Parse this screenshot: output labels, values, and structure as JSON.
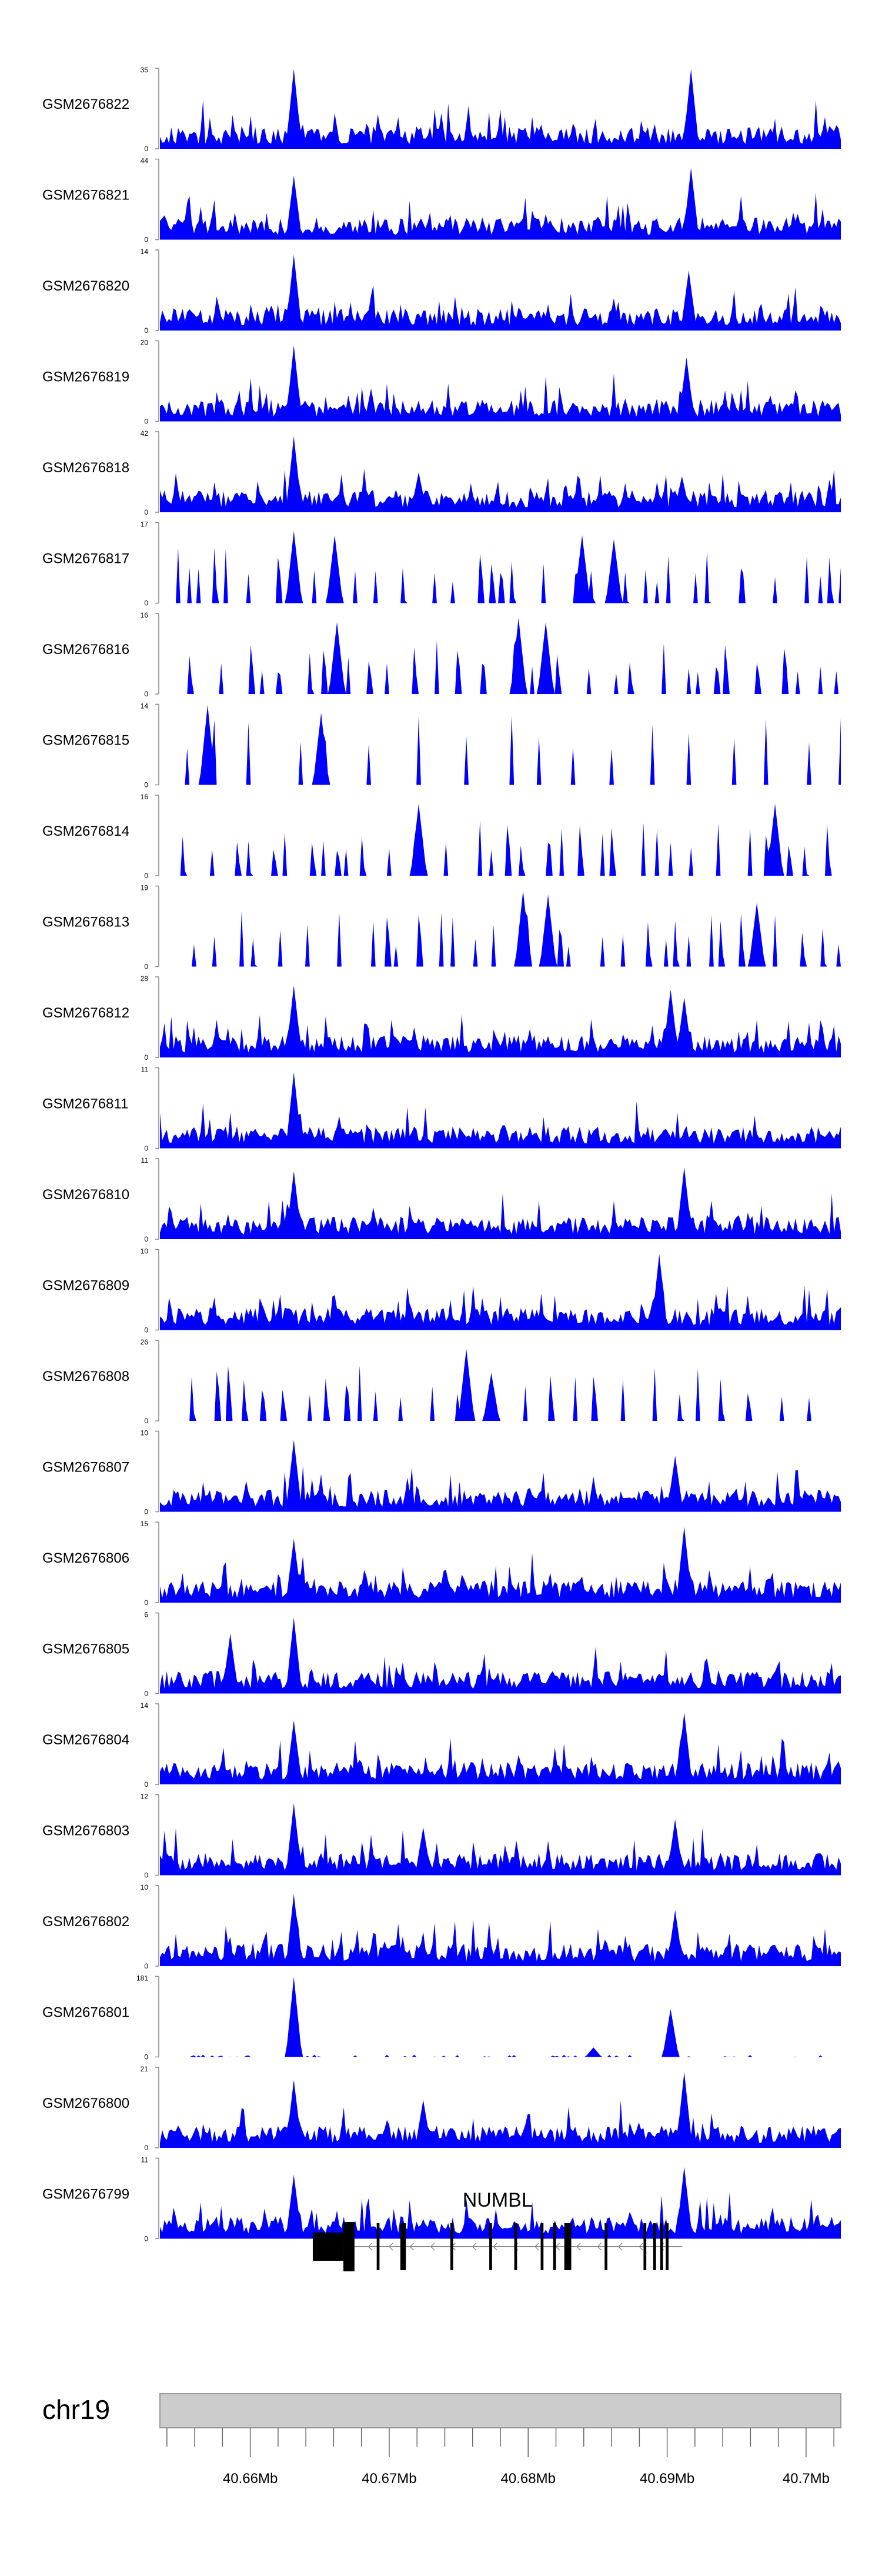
{
  "chart_data": {
    "type": "area",
    "title": "",
    "xlabel": "",
    "chromosome": "chr19",
    "xlim_mb": [
      40.6535,
      40.7025
    ],
    "x_ticks": [
      {
        "value": 40.66,
        "label": "40.66Mb"
      },
      {
        "value": 40.67,
        "label": "40.67Mb"
      },
      {
        "value": 40.68,
        "label": "40.68Mb"
      },
      {
        "value": 40.69,
        "label": "40.69Mb"
      },
      {
        "value": 40.7,
        "label": "40.7Mb"
      }
    ],
    "color": "#0000ff",
    "tracks": [
      {
        "name": "GSM2676822",
        "ymin": "0",
        "ymax": "35",
        "style": "dense",
        "peaks": [
          [
            40.6632,
            1.0
          ],
          [
            40.6918,
            1.0
          ]
        ]
      },
      {
        "name": "GSM2676821",
        "ymin": "0",
        "ymax": "44",
        "style": "dense",
        "peaks": [
          [
            40.6632,
            0.8
          ],
          [
            40.6918,
            0.9
          ]
        ]
      },
      {
        "name": "GSM2676820",
        "ymin": "0",
        "ymax": "14",
        "style": "dense",
        "peaks": [
          [
            40.6632,
            0.95
          ],
          [
            40.6916,
            0.75
          ]
        ]
      },
      {
        "name": "GSM2676819",
        "ymin": "0",
        "ymax": "20",
        "style": "dense",
        "peaks": [
          [
            40.6632,
            0.95
          ],
          [
            40.6914,
            0.8
          ]
        ]
      },
      {
        "name": "GSM2676818",
        "ymin": "0",
        "ymax": "42",
        "style": "dense",
        "peaks": [
          [
            40.6632,
            0.95
          ],
          [
            40.6721,
            0.5
          ],
          [
            40.691,
            0.45
          ]
        ]
      },
      {
        "name": "GSM2676817",
        "ymin": "0",
        "ymax": "17",
        "style": "sparse",
        "peaks": [
          [
            40.6632,
            0.9
          ],
          [
            40.666,
            0.85
          ],
          [
            40.6838,
            0.85
          ],
          [
            40.6862,
            0.8
          ]
        ]
      },
      {
        "name": "GSM2676816",
        "ymin": "0",
        "ymax": "16",
        "style": "sparse",
        "peaks": [
          [
            40.6662,
            0.9
          ],
          [
            40.6793,
            0.95
          ],
          [
            40.6813,
            0.9
          ]
        ]
      },
      {
        "name": "GSM2676815",
        "ymin": "0",
        "ymax": "14",
        "style": "triangles",
        "peaks": [
          [
            40.657,
            1.0
          ],
          [
            40.6651,
            0.9
          ]
        ]
      },
      {
        "name": "GSM2676814",
        "ymin": "0",
        "ymax": "16",
        "style": "sparse",
        "peaks": [
          [
            40.6722,
            0.9
          ],
          [
            40.6977,
            0.9
          ]
        ]
      },
      {
        "name": "GSM2676813",
        "ymin": "0",
        "ymax": "19",
        "style": "sparse",
        "peaks": [
          [
            40.6797,
            0.95
          ],
          [
            40.6815,
            0.9
          ],
          [
            40.6965,
            0.8
          ]
        ]
      },
      {
        "name": "GSM2676812",
        "ymin": "0",
        "ymax": "28",
        "style": "dense",
        "peaks": [
          [
            40.6632,
            0.9
          ],
          [
            40.6903,
            0.85
          ],
          [
            40.6913,
            0.75
          ]
        ]
      },
      {
        "name": "GSM2676811",
        "ymin": "0",
        "ymax": "11",
        "style": "dense",
        "peaks": [
          [
            40.6632,
            0.95
          ]
        ]
      },
      {
        "name": "GSM2676810",
        "ymin": "0",
        "ymax": "11",
        "style": "dense",
        "peaks": [
          [
            40.6632,
            0.85
          ],
          [
            40.6912,
            0.9
          ]
        ]
      },
      {
        "name": "GSM2676809",
        "ymin": "0",
        "ymax": "10",
        "style": "dense",
        "peaks": [
          [
            40.6895,
            0.95
          ]
        ]
      },
      {
        "name": "GSM2676808",
        "ymin": "0",
        "ymax": "26",
        "style": "sparse",
        "peaks": [
          [
            40.6755,
            0.9
          ],
          [
            40.6773,
            0.6
          ]
        ]
      },
      {
        "name": "GSM2676807",
        "ymin": "0",
        "ymax": "10",
        "style": "dense",
        "peaks": [
          [
            40.6632,
            0.9
          ],
          [
            40.6905,
            0.7
          ]
        ]
      },
      {
        "name": "GSM2676806",
        "ymin": "0",
        "ymax": "15",
        "style": "dense",
        "peaks": [
          [
            40.6632,
            0.8
          ],
          [
            40.6912,
            0.95
          ]
        ]
      },
      {
        "name": "GSM2676805",
        "ymin": "0",
        "ymax": "6",
        "style": "dense",
        "peaks": [
          [
            40.6632,
            0.95
          ],
          [
            40.6585,
            0.75
          ]
        ]
      },
      {
        "name": "GSM2676804",
        "ymin": "0",
        "ymax": "14",
        "style": "dense",
        "peaks": [
          [
            40.6632,
            0.8
          ],
          [
            40.6912,
            0.9
          ]
        ]
      },
      {
        "name": "GSM2676803",
        "ymin": "0",
        "ymax": "12",
        "style": "dense",
        "peaks": [
          [
            40.6632,
            0.9
          ],
          [
            40.6725,
            0.6
          ],
          [
            40.6905,
            0.7
          ]
        ]
      },
      {
        "name": "GSM2676802",
        "ymin": "0",
        "ymax": "10",
        "style": "dense",
        "peaks": [
          [
            40.6632,
            0.9
          ],
          [
            40.6905,
            0.7
          ]
        ]
      },
      {
        "name": "GSM2676801",
        "ymin": "0",
        "ymax": "181",
        "style": "single",
        "peaks": [
          [
            40.6632,
            1.0
          ],
          [
            40.6902,
            0.6
          ],
          [
            40.6847,
            0.12
          ]
        ]
      },
      {
        "name": "GSM2676800",
        "ymin": "0",
        "ymax": "21",
        "style": "dense",
        "peaks": [
          [
            40.6632,
            0.85
          ],
          [
            40.6912,
            0.95
          ],
          [
            40.6725,
            0.6
          ]
        ]
      },
      {
        "name": "GSM2676799",
        "ymin": "0",
        "ymax": "11",
        "style": "dense",
        "peaks": [
          [
            40.6632,
            0.8
          ],
          [
            40.6912,
            0.9
          ]
        ]
      }
    ],
    "gene": {
      "name": "NUMBL",
      "strand": "-",
      "start_mb": 40.6645,
      "end_mb": 40.6911,
      "exons": [
        [
          40.6645,
          40.6667
        ],
        [
          40.6667,
          40.6675
        ],
        [
          40.6691,
          40.6693
        ],
        [
          40.6708,
          40.6712
        ],
        [
          40.6744,
          40.6746
        ],
        [
          40.6772,
          40.6774
        ],
        [
          40.679,
          40.6792
        ],
        [
          40.6809,
          40.6811
        ],
        [
          40.6818,
          40.682
        ],
        [
          40.6826,
          40.6831
        ],
        [
          40.6855,
          40.6857
        ],
        [
          40.6883,
          40.6885
        ],
        [
          40.689,
          40.6892
        ],
        [
          40.6895,
          40.6897
        ],
        [
          40.6899,
          40.6901
        ]
      ]
    }
  }
}
